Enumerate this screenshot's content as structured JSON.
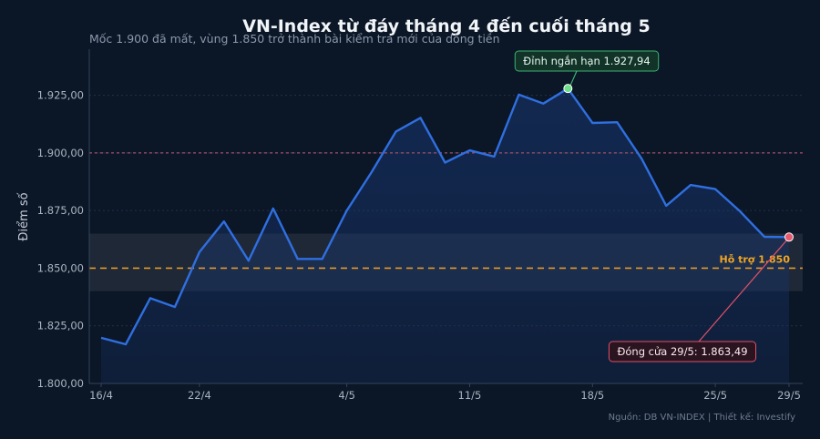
{
  "chart_data": {
    "type": "line",
    "title": "VN-Index từ đáy tháng 4 đến cuối tháng 5",
    "subtitle": "Mốc 1.900 đã mất, vùng 1.850 trở thành bài kiểm tra mới của dòng tiền",
    "ylabel": "Điểm số",
    "xlabel": "",
    "ylim": [
      1800,
      1945
    ],
    "x_tick_labels": [
      {
        "label": "16/4",
        "index": 0
      },
      {
        "label": "22/4",
        "index": 4
      },
      {
        "label": "4/5",
        "index": 10
      },
      {
        "label": "11/5",
        "index": 15
      },
      {
        "label": "18/5",
        "index": 20
      },
      {
        "label": "25/5",
        "index": 25
      },
      {
        "label": "29/5",
        "index": 28
      }
    ],
    "y_tick_labels": [
      "1.800,00",
      "1.825,00",
      "1.850,00",
      "1.875,00",
      "1.900,00",
      "1.925,00"
    ],
    "y_ticks": [
      1800,
      1825,
      1850,
      1875,
      1900,
      1925
    ],
    "series": [
      {
        "values": [
          1819.8,
          1817.0,
          1837.0,
          1833.2,
          1857.0,
          1870.3,
          1853.2,
          1875.9,
          1854.0,
          1854.0,
          1875.0,
          1891.5,
          1909.3,
          1915.2,
          1895.8,
          1901.1,
          1898.4,
          1925.3,
          1921.4,
          1927.94,
          1913.0,
          1913.3,
          1897.5,
          1877.1,
          1886.1,
          1884.3,
          1874.7,
          1863.6,
          1863.49
        ],
        "color": "#2f6fe0"
      }
    ],
    "reference_lines": [
      {
        "value": 1900,
        "color": "#a0506a",
        "style": "dotted"
      },
      {
        "value": 1850,
        "color": "#e69a2a",
        "style": "dashed",
        "label": "Hỗ trợ 1.850"
      }
    ],
    "support_band": [
      1840,
      1865
    ],
    "annotations": [
      {
        "text": "Đỉnh ngắn hạn 1.927,94",
        "index": 19,
        "value": 1927.94,
        "color": "#3cb371"
      },
      {
        "text": "Đóng cửa 29/5: 1.863,49",
        "index": 28,
        "value": 1863.49,
        "color": "#e05068"
      }
    ],
    "grid": true,
    "source": "Nguồn: DB VN-INDEX | Thiết kế: Investify"
  }
}
